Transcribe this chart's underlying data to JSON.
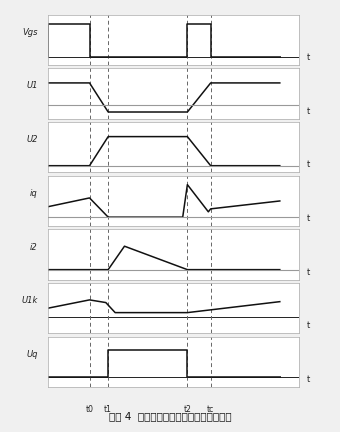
{
  "title": "图表 4  反激电源临界连续模式下工作过程",
  "bg_color": "#f0f0f0",
  "panel_bg": "#ffffff",
  "panel_edge": "#aaaaaa",
  "signals": [
    "Vgs",
    "U1",
    "U2",
    "iq",
    "i2",
    "U1k",
    "Uq"
  ],
  "t0": 0.18,
  "t1": 0.26,
  "t2": 0.6,
  "t3": 0.7,
  "tend": 1.0,
  "tstart": 0.0,
  "dashed_color": "#666666",
  "axis_color": "#222222",
  "wave_color": "#111111",
  "gray_line": "#999999",
  "label_color": "#222222"
}
